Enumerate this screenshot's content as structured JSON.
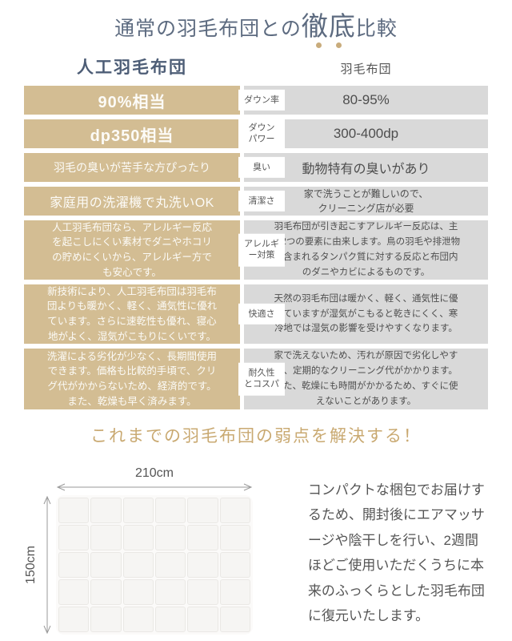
{
  "title": {
    "pre": "通常の羽毛布団との",
    "emph": "徹底",
    "post": "比較"
  },
  "columns": {
    "left": "人工羽毛布団",
    "right": "羽毛布団"
  },
  "rows": [
    {
      "label": "ダウン率",
      "left": "90%相当",
      "right": "80-95%"
    },
    {
      "label": "ダウン\nパワー",
      "left": "dp350相当",
      "right": "300-400dp"
    },
    {
      "label": "臭い",
      "left": "羽毛の臭いが苦手な方ぴったり",
      "right": "動物特有の臭いがあり"
    },
    {
      "label": "清潔さ",
      "left": "家庭用の洗濯機で丸洗いOK",
      "right": "家で洗うことが難しいので、\nクリーニング店が必要"
    },
    {
      "label": "アレルギ\nー対策",
      "left": "人工羽毛布団なら、アレルギー反応\nを起こしにくい素材でダニやホコリ\nの貯めにくいから、アレルギー方で\nも安心です。",
      "right": "羽毛布団が引き起こすアレルギー反応は、主\nに2つの要素に由来します。鳥の羽毛や排泄物\nに含まれるタンパク質に対する反応と布団内\nのダニやカビによるものです。"
    },
    {
      "label": "快適さ",
      "left": "新技術により、人工羽毛布団は羽毛布\n団よりも暖かく、軽く、通気性に優れ\nています。さらに速乾性も優れ、寝心\n地がよく、湿気がこもりにくいです。",
      "right": "天然の羽毛布団は暖かく、軽く、通気性に優\nれていますが湿気がこもると乾きにくく、寒\n冷地では湿気の影響を受けやすくなります。"
    },
    {
      "label": "耐久性\nとコスパ",
      "left": "洗濯による劣化が少なく、長期間使用\nできます。価格も比較的手頃で、クリ\nグ代がかからないため、経済的です。\nまた、乾燥も早く済みます。",
      "right": "家で洗えないため、汚れが原因で劣化しやす\nく、定期的なクリーニング代がかかります。\nまた、乾燥にも時間がかかるため、すぐに使\nえないことがあります。"
    }
  ],
  "banner": "これまでの羽毛布団の弱点を解決する！",
  "diagram": {
    "width_label": "210cm",
    "height_label": "150cm",
    "cols": 6,
    "rows": 5
  },
  "description": "コンパクトな梱包でお届けす\nるため、開封後にエアマッサ\nージや陰干しを行い、2週間\nほどご使用いただくうちに本\n来のふっくらとした羽毛布団\nに復元いたします。",
  "colors": {
    "accent_tan": "#d3bd93",
    "cell_gray": "#d9d9d9",
    "navy": "#4d5d76",
    "gold": "#c9a971"
  }
}
